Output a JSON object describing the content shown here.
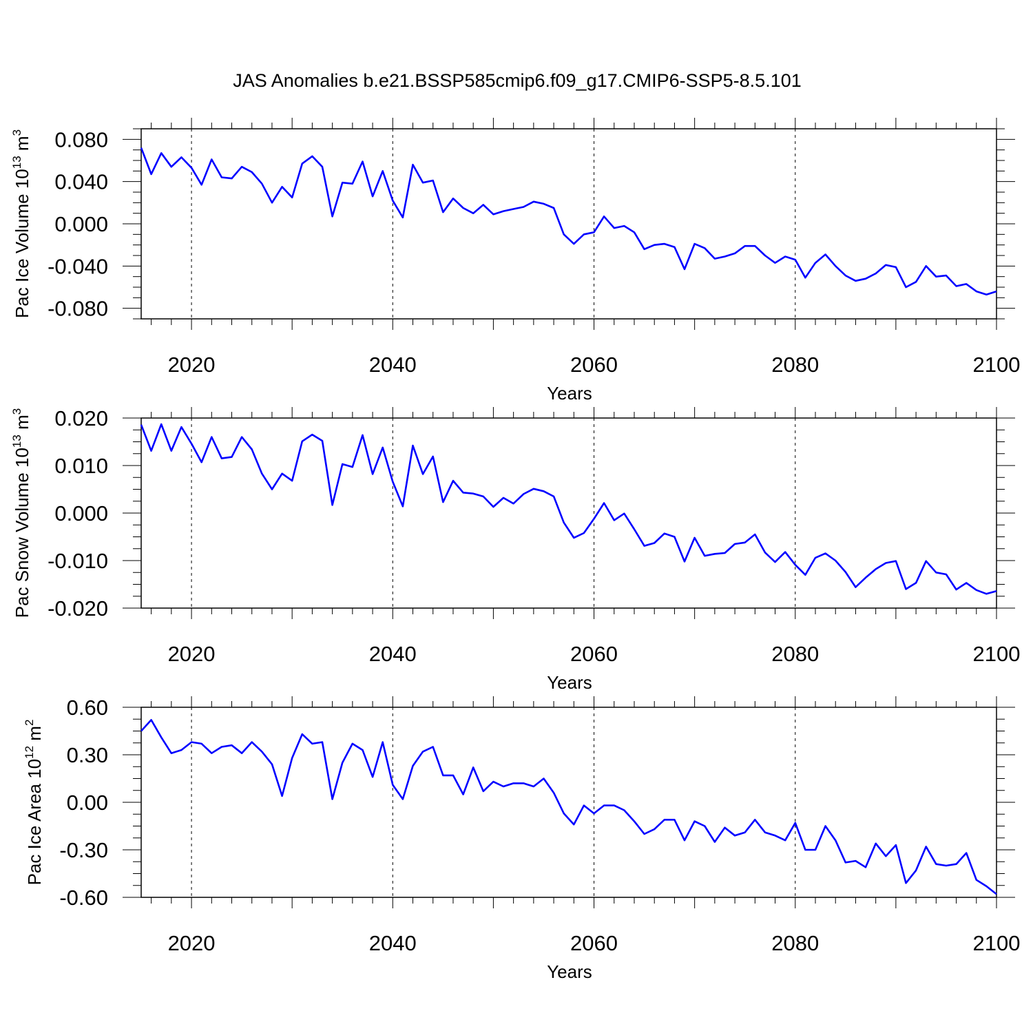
{
  "title": "JAS Anomalies b.e21.BSSP585cmip6.f09_g17.CMIP6-SSP5-8.5.101",
  "line_color": "#0000ff",
  "chart_data": [
    {
      "type": "line",
      "ylabel": "Pac Ice Volume 10",
      "ylabel_exp": "13",
      "ylabel_unit": " m",
      "ylabel_unit_exp": "3",
      "xlabel": "Years",
      "xlim": [
        2015,
        2100
      ],
      "ylim": [
        -0.09,
        0.09
      ],
      "x_ticks": [
        2020,
        2040,
        2060,
        2080,
        2100
      ],
      "x_tick_labels": [
        "2020",
        "2040",
        "2060",
        "2080",
        "2100"
      ],
      "y_ticks": [
        0.08,
        0.04,
        0.0,
        -0.04,
        -0.08
      ],
      "y_tick_labels": [
        "0.080",
        "0.040",
        "0.000",
        "-0.040",
        "-0.080"
      ],
      "grid": "dashed vertical lines at labeled years",
      "x": [
        2015,
        2016,
        2017,
        2018,
        2019,
        2020,
        2021,
        2022,
        2023,
        2024,
        2025,
        2026,
        2027,
        2028,
        2029,
        2030,
        2031,
        2032,
        2033,
        2034,
        2035,
        2036,
        2037,
        2038,
        2039,
        2040,
        2041,
        2042,
        2043,
        2044,
        2045,
        2046,
        2047,
        2048,
        2049,
        2050,
        2051,
        2052,
        2053,
        2054,
        2055,
        2056,
        2057,
        2058,
        2059,
        2060,
        2061,
        2062,
        2063,
        2064,
        2065,
        2066,
        2067,
        2068,
        2069,
        2070,
        2071,
        2072,
        2073,
        2074,
        2075,
        2076,
        2077,
        2078,
        2079,
        2080,
        2081,
        2082,
        2083,
        2084,
        2085,
        2086,
        2087,
        2088,
        2089,
        2090,
        2091,
        2092,
        2093,
        2094,
        2095,
        2096,
        2097,
        2098,
        2099,
        2100
      ],
      "values": [
        0.072,
        0.047,
        0.067,
        0.054,
        0.063,
        0.053,
        0.037,
        0.061,
        0.044,
        0.043,
        0.054,
        0.049,
        0.038,
        0.02,
        0.035,
        0.025,
        0.057,
        0.064,
        0.054,
        0.007,
        0.039,
        0.038,
        0.059,
        0.026,
        0.05,
        0.022,
        0.006,
        0.056,
        0.039,
        0.041,
        0.011,
        0.024,
        0.015,
        0.01,
        0.018,
        0.009,
        0.012,
        0.014,
        0.016,
        0.021,
        0.019,
        0.015,
        -0.01,
        -0.019,
        -0.01,
        -0.008,
        0.007,
        -0.004,
        -0.002,
        -0.008,
        -0.024,
        -0.02,
        -0.019,
        -0.022,
        -0.043,
        -0.019,
        -0.023,
        -0.033,
        -0.031,
        -0.028,
        -0.021,
        -0.021,
        -0.03,
        -0.037,
        -0.031,
        -0.034,
        -0.051,
        -0.037,
        -0.029,
        -0.04,
        -0.049,
        -0.054,
        -0.052,
        -0.047,
        -0.039,
        -0.041,
        -0.06,
        -0.055,
        -0.04,
        -0.05,
        -0.049,
        -0.059,
        -0.057,
        -0.064,
        -0.067,
        -0.064
      ]
    },
    {
      "type": "line",
      "ylabel": "Pac Snow Volume 10",
      "ylabel_exp": "13",
      "ylabel_unit": " m",
      "ylabel_unit_exp": "3",
      "xlabel": "Years",
      "xlim": [
        2015,
        2100
      ],
      "ylim": [
        -0.02,
        0.02
      ],
      "x_ticks": [
        2020,
        2040,
        2060,
        2080,
        2100
      ],
      "x_tick_labels": [
        "2020",
        "2040",
        "2060",
        "2080",
        "2100"
      ],
      "y_ticks": [
        0.02,
        0.01,
        0.0,
        -0.01,
        -0.02
      ],
      "y_tick_labels": [
        "0.020",
        "0.010",
        "0.000",
        "-0.010",
        "-0.020"
      ],
      "grid": "dashed vertical lines at labeled years",
      "x": [
        2015,
        2016,
        2017,
        2018,
        2019,
        2020,
        2021,
        2022,
        2023,
        2024,
        2025,
        2026,
        2027,
        2028,
        2029,
        2030,
        2031,
        2032,
        2033,
        2034,
        2035,
        2036,
        2037,
        2038,
        2039,
        2040,
        2041,
        2042,
        2043,
        2044,
        2045,
        2046,
        2047,
        2048,
        2049,
        2050,
        2051,
        2052,
        2053,
        2054,
        2055,
        2056,
        2057,
        2058,
        2059,
        2060,
        2061,
        2062,
        2063,
        2064,
        2065,
        2066,
        2067,
        2068,
        2069,
        2070,
        2071,
        2072,
        2073,
        2074,
        2075,
        2076,
        2077,
        2078,
        2079,
        2080,
        2081,
        2082,
        2083,
        2084,
        2085,
        2086,
        2087,
        2088,
        2089,
        2090,
        2091,
        2092,
        2093,
        2094,
        2095,
        2096,
        2097,
        2098,
        2099,
        2100
      ],
      "values": [
        0.0186,
        0.0131,
        0.0187,
        0.0131,
        0.0181,
        0.0146,
        0.0107,
        0.016,
        0.0115,
        0.0118,
        0.016,
        0.0134,
        0.0083,
        0.005,
        0.0083,
        0.0068,
        0.0151,
        0.0165,
        0.0152,
        0.0017,
        0.0103,
        0.0097,
        0.0164,
        0.0082,
        0.0138,
        0.0066,
        0.0014,
        0.0142,
        0.0082,
        0.0119,
        0.0023,
        0.0068,
        0.0043,
        0.0041,
        0.0035,
        0.0013,
        0.0032,
        0.002,
        0.004,
        0.0051,
        0.0046,
        0.0035,
        -0.002,
        -0.0052,
        -0.0042,
        -0.0012,
        0.0021,
        -0.0015,
        -0.0001,
        -0.0034,
        -0.0069,
        -0.0063,
        -0.0043,
        -0.005,
        -0.0102,
        -0.0052,
        -0.009,
        -0.0086,
        -0.0084,
        -0.0065,
        -0.0062,
        -0.0045,
        -0.0083,
        -0.0103,
        -0.0082,
        -0.0109,
        -0.013,
        -0.0094,
        -0.0085,
        -0.01,
        -0.0124,
        -0.0156,
        -0.0136,
        -0.0118,
        -0.0105,
        -0.0101,
        -0.016,
        -0.0147,
        -0.0101,
        -0.0125,
        -0.0129,
        -0.0161,
        -0.0147,
        -0.0162,
        -0.017,
        -0.0164
      ]
    },
    {
      "type": "line",
      "ylabel": "Pac Ice Area 10",
      "ylabel_exp": "12",
      "ylabel_unit": " m",
      "ylabel_unit_exp": "2",
      "xlabel": "Years",
      "xlim": [
        2015,
        2100
      ],
      "ylim": [
        -0.6,
        0.6
      ],
      "x_ticks": [
        2020,
        2040,
        2060,
        2080,
        2100
      ],
      "x_tick_labels": [
        "2020",
        "2040",
        "2060",
        "2080",
        "2100"
      ],
      "y_ticks": [
        0.6,
        0.3,
        0.0,
        -0.3,
        -0.6
      ],
      "y_tick_labels": [
        "0.60",
        "0.30",
        "0.00",
        "-0.30",
        "-0.60"
      ],
      "grid": "dashed vertical lines at labeled years",
      "x": [
        2015,
        2016,
        2017,
        2018,
        2019,
        2020,
        2021,
        2022,
        2023,
        2024,
        2025,
        2026,
        2027,
        2028,
        2029,
        2030,
        2031,
        2032,
        2033,
        2034,
        2035,
        2036,
        2037,
        2038,
        2039,
        2040,
        2041,
        2042,
        2043,
        2044,
        2045,
        2046,
        2047,
        2048,
        2049,
        2050,
        2051,
        2052,
        2053,
        2054,
        2055,
        2056,
        2057,
        2058,
        2059,
        2060,
        2061,
        2062,
        2063,
        2064,
        2065,
        2066,
        2067,
        2068,
        2069,
        2070,
        2071,
        2072,
        2073,
        2074,
        2075,
        2076,
        2077,
        2078,
        2079,
        2080,
        2081,
        2082,
        2083,
        2084,
        2085,
        2086,
        2087,
        2088,
        2089,
        2090,
        2091,
        2092,
        2093,
        2094,
        2095,
        2096,
        2097,
        2098,
        2099,
        2100
      ],
      "values": [
        0.45,
        0.52,
        0.41,
        0.31,
        0.33,
        0.38,
        0.37,
        0.31,
        0.35,
        0.36,
        0.31,
        0.38,
        0.32,
        0.24,
        0.04,
        0.28,
        0.43,
        0.37,
        0.38,
        0.02,
        0.25,
        0.37,
        0.33,
        0.16,
        0.38,
        0.11,
        0.02,
        0.23,
        0.32,
        0.35,
        0.17,
        0.17,
        0.05,
        0.22,
        0.07,
        0.13,
        0.1,
        0.12,
        0.12,
        0.1,
        0.15,
        0.06,
        -0.07,
        -0.14,
        -0.02,
        -0.07,
        -0.02,
        -0.02,
        -0.05,
        -0.12,
        -0.2,
        -0.17,
        -0.11,
        -0.11,
        -0.24,
        -0.12,
        -0.15,
        -0.25,
        -0.16,
        -0.21,
        -0.19,
        -0.11,
        -0.19,
        -0.21,
        -0.24,
        -0.13,
        -0.3,
        -0.3,
        -0.15,
        -0.24,
        -0.38,
        -0.37,
        -0.41,
        -0.26,
        -0.34,
        -0.27,
        -0.51,
        -0.43,
        -0.28,
        -0.39,
        -0.4,
        -0.39,
        -0.32,
        -0.49,
        -0.53,
        -0.58
      ]
    }
  ]
}
